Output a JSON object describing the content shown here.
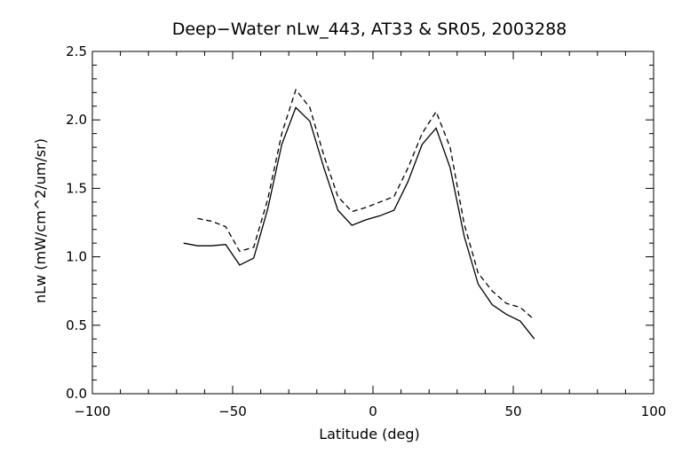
{
  "chart_data": {
    "type": "line",
    "title": "Deep−Water nLw_443, AT33 & SR05, 2003288",
    "xlabel": "Latitude (deg)",
    "ylabel": "nLw (mW/cm^2/um/sr)",
    "xlim": [
      -100,
      100
    ],
    "ylim": [
      0,
      2.5
    ],
    "xticks": [
      -100,
      -50,
      0,
      50,
      100
    ],
    "xtick_labels": [
      "−100",
      "−50",
      "0",
      "50",
      "100"
    ],
    "yticks": [
      0,
      0.5,
      1,
      1.5,
      2,
      2.5
    ],
    "ytick_labels": [
      "0.0",
      "0.5",
      "1.0",
      "1.5",
      "2.0",
      "2.5"
    ],
    "grid": false,
    "series": [
      {
        "style": "solid",
        "color": "#000000",
        "x": [
          -67.5,
          -62.5,
          -57.5,
          -52.5,
          -47.5,
          -42.5,
          -37.5,
          -32.5,
          -27.5,
          -22.5,
          -17.5,
          -12.5,
          -7.5,
          -2.5,
          2.5,
          7.5,
          12.5,
          17.5,
          22.5,
          27.5,
          32.5,
          37.5,
          42.5,
          47.5,
          52.5,
          57.5
        ],
        "y": [
          1.1,
          1.08,
          1.08,
          1.09,
          0.94,
          0.99,
          1.35,
          1.82,
          2.09,
          1.99,
          1.65,
          1.34,
          1.23,
          1.27,
          1.3,
          1.34,
          1.55,
          1.82,
          1.94,
          1.65,
          1.15,
          0.8,
          0.65,
          0.58,
          0.53,
          0.4
        ]
      },
      {
        "style": "dashed",
        "color": "#000000",
        "x": [
          -67.5,
          -62.5,
          -57.5,
          -52.5,
          -47.5,
          -42.5,
          -37.5,
          -32.5,
          -27.5,
          -22.5,
          -17.5,
          -12.5,
          -7.5,
          -2.5,
          2.5,
          7.5,
          12.5,
          17.5,
          22.5,
          27.5,
          32.5,
          37.5,
          42.5,
          47.5,
          52.5,
          57.5
        ],
        "y": [
          null,
          1.28,
          1.26,
          1.22,
          1.04,
          1.07,
          1.42,
          1.9,
          2.22,
          2.09,
          1.74,
          1.44,
          1.33,
          1.36,
          1.4,
          1.44,
          1.65,
          1.9,
          2.06,
          1.8,
          1.24,
          0.88,
          0.75,
          0.66,
          0.63,
          0.54
        ]
      }
    ]
  }
}
